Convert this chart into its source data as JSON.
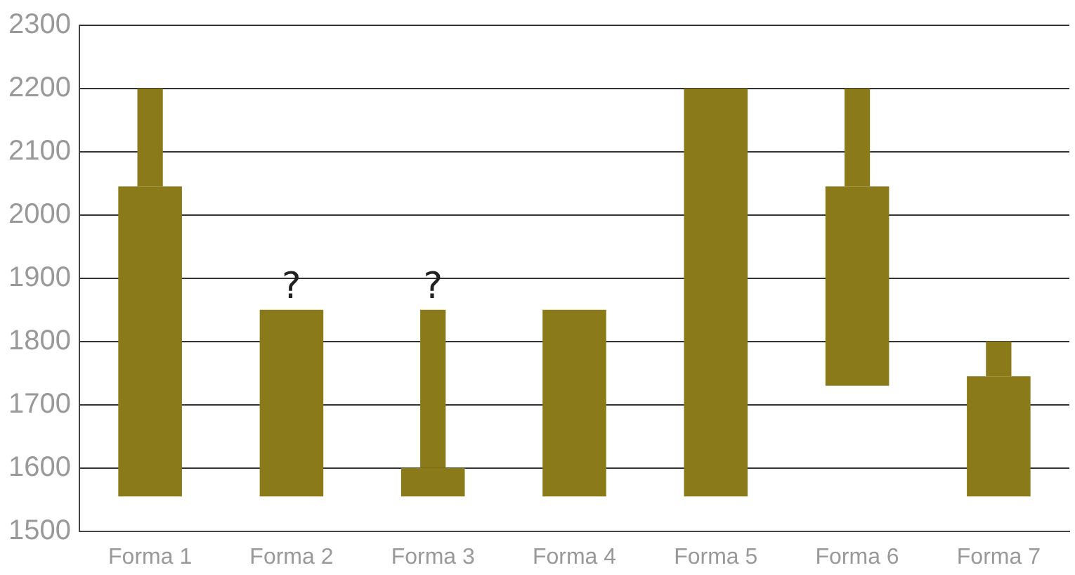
{
  "chart_data": {
    "type": "bar",
    "categories": [
      "Forma 1",
      "Forma 2",
      "Forma 3",
      "Forma 4",
      "Forma 5",
      "Forma 6",
      "Forma 7"
    ],
    "series": [
      {
        "color": "#8b7a1a",
        "base": [
          1555,
          1555,
          1555,
          1555,
          1555,
          1730,
          1555
        ],
        "values": [
          490,
          295,
          45,
          295,
          645,
          315,
          190
        ]
      },
      {
        "color": "#8b7a1a",
        "base": [
          2045,
          null,
          1600,
          null,
          null,
          2045,
          1745
        ],
        "values": [
          155,
          null,
          250,
          null,
          null,
          155,
          55
        ]
      }
    ],
    "ylim": [
      1500,
      2300
    ],
    "yticks": [
      1500,
      1600,
      1700,
      1800,
      1900,
      2000,
      2100,
      2200,
      2300
    ],
    "grid": "y",
    "legend": false,
    "annotations": [
      {
        "text": "?",
        "x": "Forma 2",
        "y": 1850
      },
      {
        "text": "?",
        "x": "Forma 3",
        "y": 1850
      }
    ]
  }
}
